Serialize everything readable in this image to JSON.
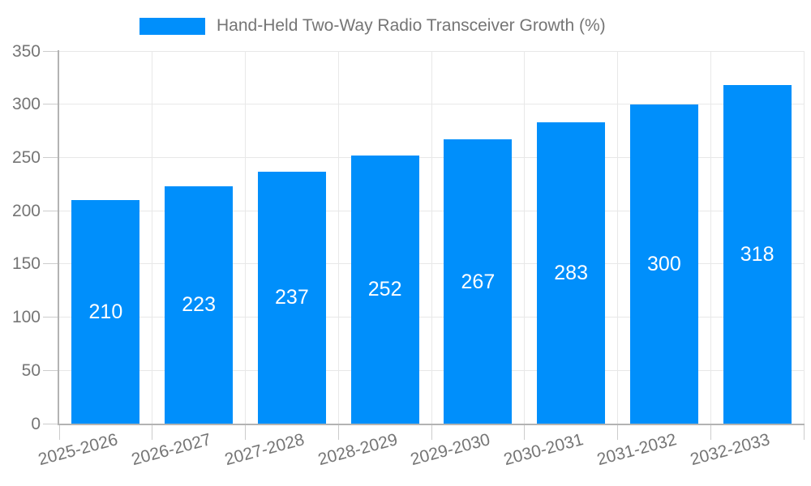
{
  "chart_data": {
    "type": "bar",
    "title": "Hand-Held Two-Way Radio Transceiver Growth (%)",
    "legend": {
      "position": "top",
      "label": "Hand-Held Two-Way Radio Transceiver Growth (%)"
    },
    "categories": [
      "2025-2026",
      "2026-2027",
      "2027-2028",
      "2028-2029",
      "2029-2030",
      "2030-2031",
      "2031-2032",
      "2032-2033"
    ],
    "series": [
      {
        "name": "Hand-Held Two-Way Radio Transceiver Growth (%)",
        "values": [
          210,
          223,
          237,
          252,
          267,
          283,
          300,
          318
        ]
      }
    ],
    "value_labels": [
      "210",
      "223",
      "237",
      "252",
      "267",
      "283",
      "300",
      "318"
    ],
    "xlabel": "",
    "ylabel": "",
    "ylim": [
      0,
      350
    ],
    "ytick_step": 50,
    "ytick_labels": [
      "0",
      "50",
      "100",
      "150",
      "200",
      "250",
      "300",
      "350"
    ],
    "grid": true,
    "colors": {
      "bar": "#008FFB",
      "grid": "#e8e8e8",
      "axis": "#b3b3b3",
      "tick": "#cccccc",
      "text": "#757575",
      "value_label": "#ffffff",
      "background": "#ffffff"
    }
  }
}
